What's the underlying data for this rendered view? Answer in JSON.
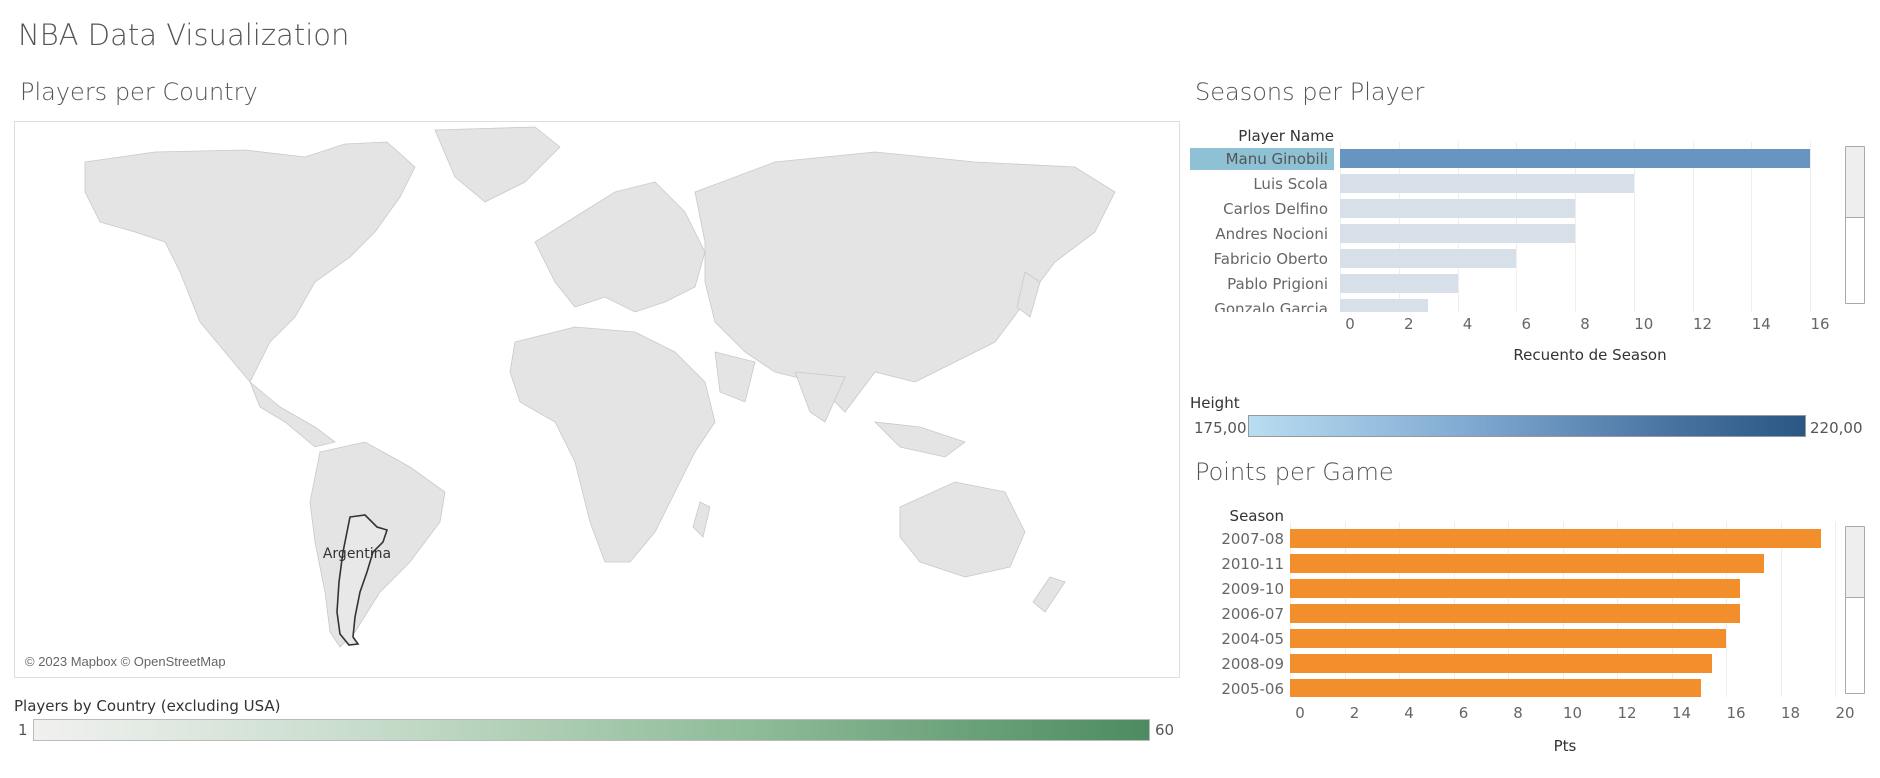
{
  "dashboard": {
    "title": "NBA Data Visualization"
  },
  "map": {
    "title": "Players per Country",
    "highlight_label": "Argentina",
    "attribution": "© 2023 Mapbox © OpenStreetMap",
    "legend": {
      "title": "Players by Country (excluding USA)",
      "min": "1",
      "max": "60"
    }
  },
  "seasons": {
    "title": "Seasons per Player",
    "row_header": "Player Name",
    "x_axis_title": "Recuento de Season",
    "colors": {
      "selected": "#6795c0",
      "other": "#d7dfe9",
      "selected_label_bg": "#8fc1d4"
    },
    "chart_data": {
      "type": "bar",
      "orientation": "horizontal",
      "categories": [
        "Manu Ginobili",
        "Luis Scola",
        "Carlos Delfino",
        "Andres Nocioni",
        "Fabricio Oberto",
        "Pablo Prigioni",
        "Gonzalo Garcia"
      ],
      "values": [
        16,
        10,
        8,
        8,
        6,
        4,
        3
      ],
      "selected": "Manu Ginobili",
      "xlabel": "Recuento de Season",
      "ylabel": "Player Name",
      "xlim": [
        0,
        16
      ],
      "ticks": [
        "0",
        "2",
        "4",
        "6",
        "8",
        "10",
        "12",
        "14",
        "16"
      ]
    }
  },
  "height_legend": {
    "title": "Height",
    "min": "175,00",
    "max": "220,00"
  },
  "points": {
    "title": "Points per Game",
    "row_header": "Season",
    "x_axis_title": "Pts",
    "colors": {
      "bar": "#f28e2b"
    },
    "chart_data": {
      "type": "bar",
      "orientation": "horizontal",
      "categories": [
        "2007-08",
        "2010-11",
        "2009-10",
        "2006-07",
        "2004-05",
        "2008-09",
        "2005-06"
      ],
      "values": [
        19.5,
        17.4,
        16.5,
        16.5,
        16.0,
        15.5,
        15.1
      ],
      "xlabel": "Pts",
      "ylabel": "Season",
      "xlim": [
        0,
        20
      ],
      "ticks": [
        "0",
        "2",
        "4",
        "6",
        "8",
        "10",
        "12",
        "14",
        "16",
        "18",
        "20"
      ]
    }
  }
}
